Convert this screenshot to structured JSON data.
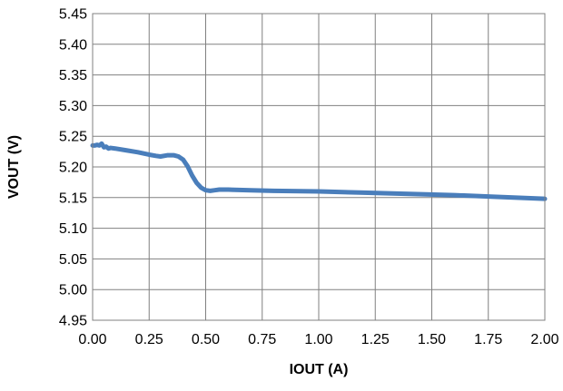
{
  "chart_data": {
    "type": "line",
    "title": "",
    "xlabel": "IOUT (A)",
    "ylabel": "VOUT (V)",
    "xlim": [
      0,
      2
    ],
    "ylim": [
      4.95,
      5.45
    ],
    "x_ticks": [
      0,
      0.25,
      0.5,
      0.75,
      1,
      1.25,
      1.5,
      1.75,
      2
    ],
    "x_tick_labels": [
      "0.00",
      "0.25",
      "0.50",
      "0.75",
      "1.00",
      "1.25",
      "1.50",
      "1.75",
      "2.00"
    ],
    "y_ticks": [
      4.95,
      5.0,
      5.05,
      5.1,
      5.15,
      5.2,
      5.25,
      5.3,
      5.35,
      5.4,
      5.45
    ],
    "y_tick_labels": [
      "4.95",
      "5.00",
      "5.05",
      "5.10",
      "5.15",
      "5.20",
      "5.25",
      "5.30",
      "5.35",
      "5.40",
      "5.45"
    ],
    "grid": true,
    "legend": "none",
    "series": [
      {
        "color": "#4a7ebb",
        "x": [
          0.0,
          0.01,
          0.02,
          0.03,
          0.04,
          0.05,
          0.06,
          0.07,
          0.08,
          0.1,
          0.15,
          0.2,
          0.25,
          0.28,
          0.3,
          0.33,
          0.36,
          0.38,
          0.4,
          0.42,
          0.44,
          0.46,
          0.48,
          0.5,
          0.52,
          0.54,
          0.56,
          0.6,
          0.7,
          0.8,
          1.0,
          1.2,
          1.4,
          1.6,
          1.8,
          2.0
        ],
        "y": [
          5.235,
          5.235,
          5.236,
          5.235,
          5.238,
          5.232,
          5.233,
          5.23,
          5.231,
          5.23,
          5.227,
          5.224,
          5.22,
          5.218,
          5.217,
          5.219,
          5.219,
          5.217,
          5.212,
          5.201,
          5.186,
          5.174,
          5.166,
          5.162,
          5.161,
          5.162,
          5.163,
          5.163,
          5.162,
          5.161,
          5.16,
          5.158,
          5.156,
          5.154,
          5.151,
          5.148
        ]
      }
    ]
  }
}
